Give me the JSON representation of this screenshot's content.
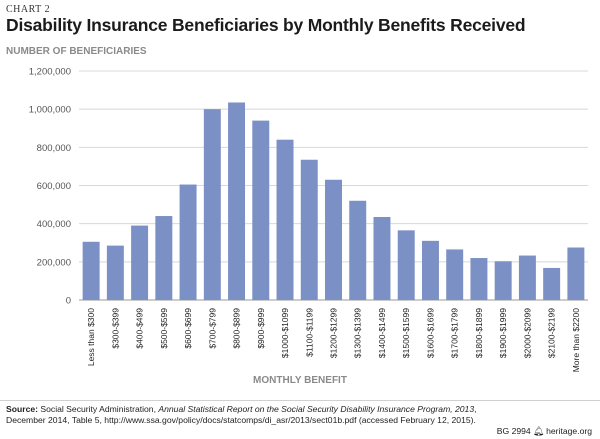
{
  "header": {
    "chart_label": "CHART 2",
    "title": "Disability Insurance Beneficiaries by Monthly Benefits Received"
  },
  "chart_data": {
    "type": "bar",
    "title": "Disability Insurance Beneficiaries by Monthly Benefits Received",
    "ylabel": "NUMBER OF BENEFICIARIES",
    "xlabel": "MONTHLY BENEFIT",
    "ylim": [
      0,
      1200000
    ],
    "yticks": [
      0,
      200000,
      400000,
      600000,
      800000,
      1000000,
      1200000
    ],
    "ytick_labels": [
      "0",
      "200,000",
      "400,000",
      "600,000",
      "800,000",
      "1,000,000",
      "1,200,000"
    ],
    "grid": true,
    "legend": "none",
    "bar_color": "#7b90c4",
    "categories": [
      "Less than $300",
      "$300-$399",
      "$400-$499",
      "$500-$599",
      "$600-$699",
      "$700-$799",
      "$800-$899",
      "$900-$999",
      "$1000-$1099",
      "$1100-$1199",
      "$1200-$1299",
      "$1300-$1399",
      "$1400-$1499",
      "$1500-$1599",
      "$1600-$1699",
      "$1700-$1799",
      "$1800-$1899",
      "$1900-$1999",
      "$2000-$2099",
      "$2100-$2199",
      "More than $2200"
    ],
    "values": [
      305000,
      285000,
      390000,
      440000,
      605000,
      1000000,
      1035000,
      940000,
      840000,
      735000,
      630000,
      520000,
      435000,
      365000,
      310000,
      265000,
      220000,
      203000,
      233000,
      168000,
      275000
    ]
  },
  "source": {
    "label": "Source:",
    "text_pre": " Social Security Administration, ",
    "text_italic": "Annual Statistical Report on the Social Security Disability Insurance Program, 2013",
    "text_post": ", December 2014, Table 5, http://www.ssa.gov/policy/docs/statcomps/di_asr/2013/sect01b.pdf (accessed February 12, 2015)."
  },
  "footer": {
    "code": "BG 2994",
    "icon": "liberty-bell-icon",
    "site": "heritage.org"
  }
}
